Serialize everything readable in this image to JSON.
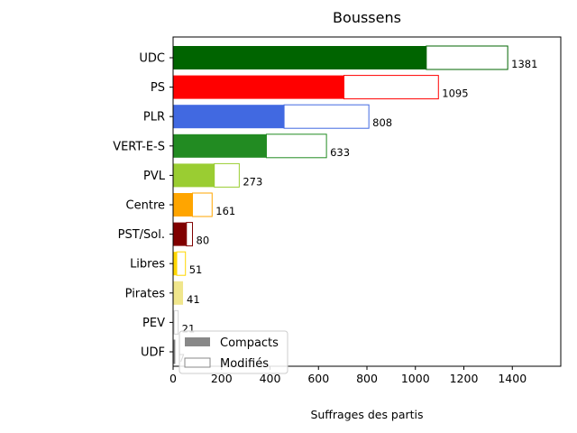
{
  "chart_data": {
    "type": "bar",
    "orientation": "horizontal",
    "title": "Boussens",
    "xlabel": "Suffrages des partis",
    "ylabel": "",
    "xlim": [
      0,
      1600
    ],
    "xticks": [
      0,
      200,
      400,
      600,
      800,
      1000,
      1200,
      1400
    ],
    "categories": [
      "UDC",
      "PS",
      "PLR",
      "VERT-E-S",
      "PVL",
      "Centre",
      "PST/Sol.",
      "Libres",
      "Pirates",
      "PEV",
      "UDF"
    ],
    "colors": [
      "#006400",
      "#ff0000",
      "#4169e1",
      "#228b22",
      "#9acd32",
      "#ffa500",
      "#800000",
      "#ffd700",
      "#f0e68c",
      "#d3d3d3",
      "#808080"
    ],
    "series": [
      {
        "name": "Compacts",
        "values": [
          1045,
          705,
          458,
          385,
          170,
          80,
          55,
          15,
          41,
          5,
          4
        ]
      },
      {
        "name": "Modifiés",
        "values": [
          336,
          390,
          350,
          248,
          103,
          81,
          25,
          36,
          0,
          16,
          3
        ]
      }
    ],
    "totals": [
      1381,
      1095,
      808,
      633,
      273,
      161,
      80,
      51,
      41,
      21,
      7
    ],
    "legend": {
      "position": "lower-left",
      "entries": [
        {
          "label": "Compacts",
          "style": "filled",
          "color": "#888888"
        },
        {
          "label": "Modifiés",
          "style": "outline",
          "color": "#888888"
        }
      ]
    },
    "grid": false
  }
}
